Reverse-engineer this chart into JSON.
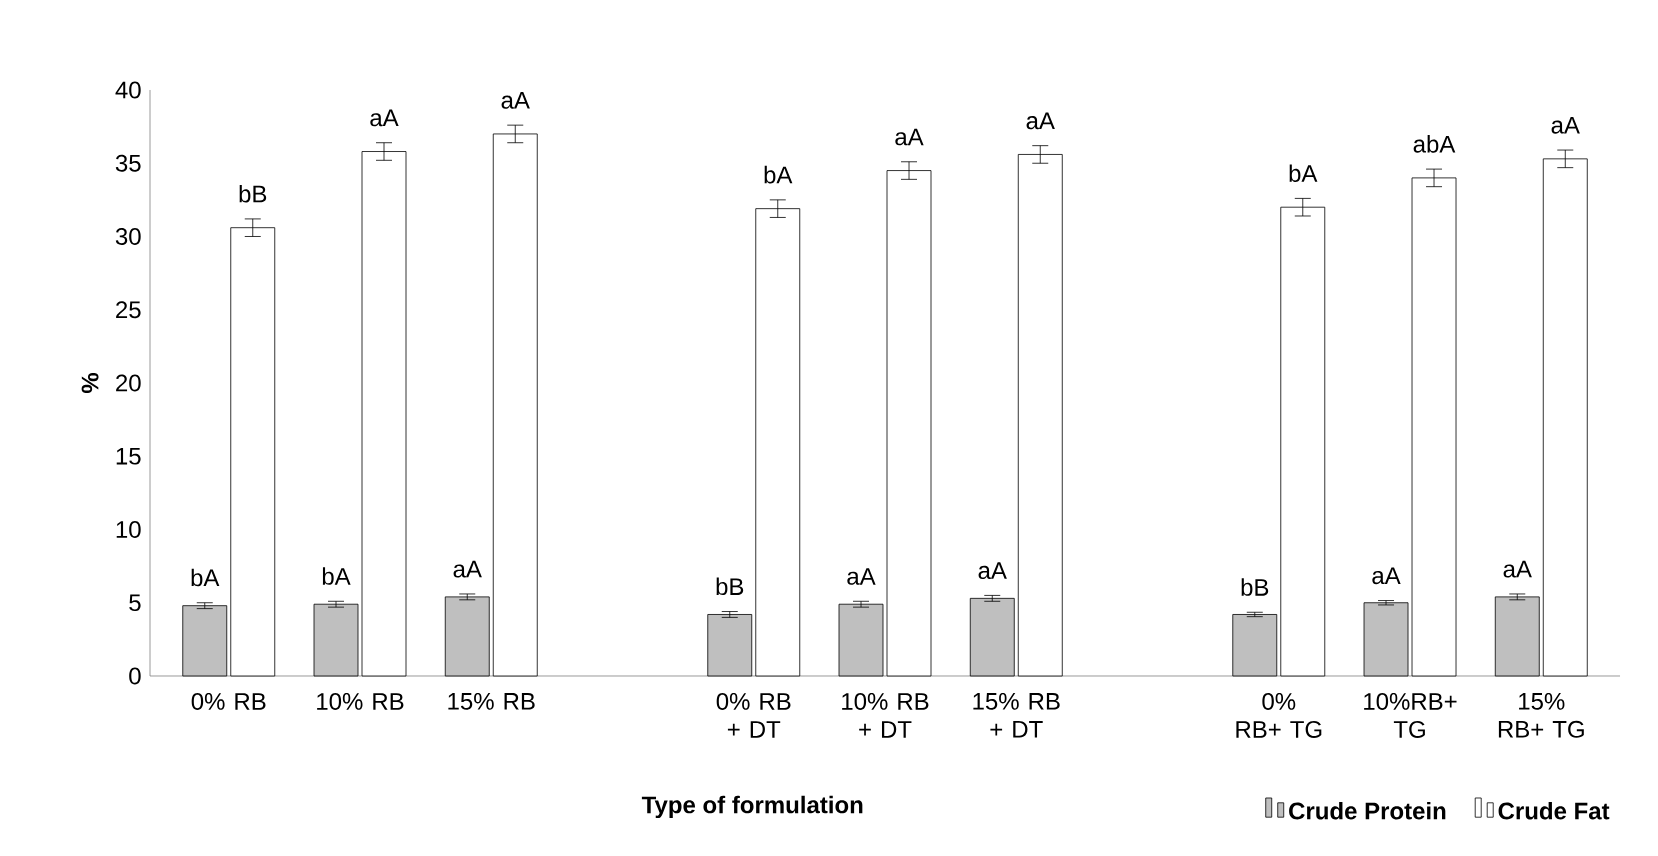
{
  "chart_data": {
    "type": "bar",
    "xlabel": "Type of formulation",
    "ylabel": "%",
    "categories": [
      "0% RB",
      "10% RB",
      "15% RB",
      null,
      "0% RB + DT",
      "10% RB + DT",
      "15% RB + DT",
      null,
      "0% RB+ TG",
      "10%RB+ TG",
      "15% RB+ TG"
    ],
    "series": [
      {
        "name": "Crude Protein",
        "color": "#bfbfbf",
        "values": [
          4.8,
          4.9,
          5.4,
          null,
          4.2,
          4.9,
          5.3,
          null,
          4.2,
          5.0,
          5.4
        ],
        "errors": [
          0.2,
          0.2,
          0.2,
          null,
          0.2,
          0.2,
          0.2,
          null,
          0.15,
          0.15,
          0.2
        ],
        "value_labels": [
          "bA",
          "bA",
          "aA",
          null,
          "bB",
          "aA",
          "aA",
          null,
          "bB",
          "aA",
          "aA"
        ]
      },
      {
        "name": "Crude Fat",
        "color": "#ffffff",
        "values": [
          30.6,
          35.8,
          37.0,
          null,
          31.9,
          34.5,
          35.6,
          null,
          32.0,
          34.0,
          35.3
        ],
        "errors": [
          0.6,
          0.6,
          0.6,
          null,
          0.6,
          0.6,
          0.6,
          null,
          0.6,
          0.6,
          0.6
        ],
        "value_labels": [
          "bB",
          "aA",
          "aA",
          null,
          "bA",
          "aA",
          "aA",
          null,
          "bA",
          "abA",
          "aA"
        ]
      }
    ],
    "ylim": [
      0,
      40
    ],
    "yticks": [
      0,
      5,
      10,
      15,
      20,
      25,
      30,
      35,
      40
    ],
    "grid": false,
    "legend": "bottom right"
  }
}
